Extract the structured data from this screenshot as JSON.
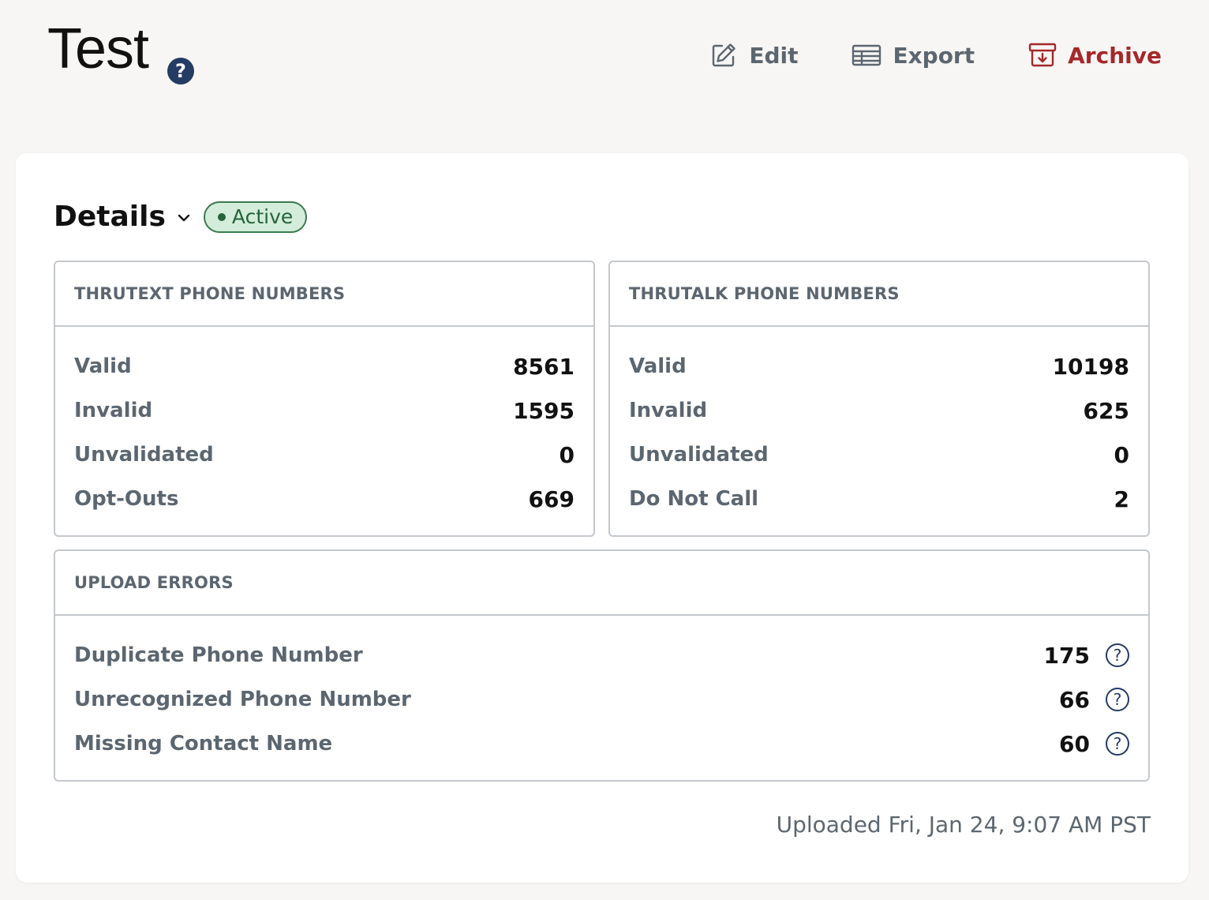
{
  "header": {
    "title": "Test",
    "help_icon": "question-circle-icon",
    "actions": {
      "edit": "Edit",
      "export": "Export",
      "archive": "Archive"
    }
  },
  "details": {
    "title": "Details",
    "status": "Active"
  },
  "thrutext": {
    "title": "THRUTEXT PHONE NUMBERS",
    "rows": [
      {
        "label": "Valid",
        "value": "8561"
      },
      {
        "label": "Invalid",
        "value": "1595"
      },
      {
        "label": "Unvalidated",
        "value": "0"
      },
      {
        "label": "Opt-Outs",
        "value": "669"
      }
    ]
  },
  "thrutalk": {
    "title": "THRUTALK PHONE NUMBERS",
    "rows": [
      {
        "label": "Valid",
        "value": "10198"
      },
      {
        "label": "Invalid",
        "value": "625"
      },
      {
        "label": "Unvalidated",
        "value": "0"
      },
      {
        "label": "Do Not Call",
        "value": "2"
      }
    ]
  },
  "upload_errors": {
    "title": "UPLOAD ERRORS",
    "rows": [
      {
        "label": "Duplicate Phone Number",
        "value": "175"
      },
      {
        "label": "Unrecognized Phone Number",
        "value": "66"
      },
      {
        "label": "Missing Contact Name",
        "value": "60"
      }
    ]
  },
  "uploaded_text": "Uploaded Fri, Jan 24, 9:07 AM PST",
  "colors": {
    "background": "#f7f6f4",
    "archive": "#a5282a",
    "active_badge_bg": "#d4eddb",
    "active_badge_text": "#25633a",
    "help_icon": "#243b64"
  }
}
